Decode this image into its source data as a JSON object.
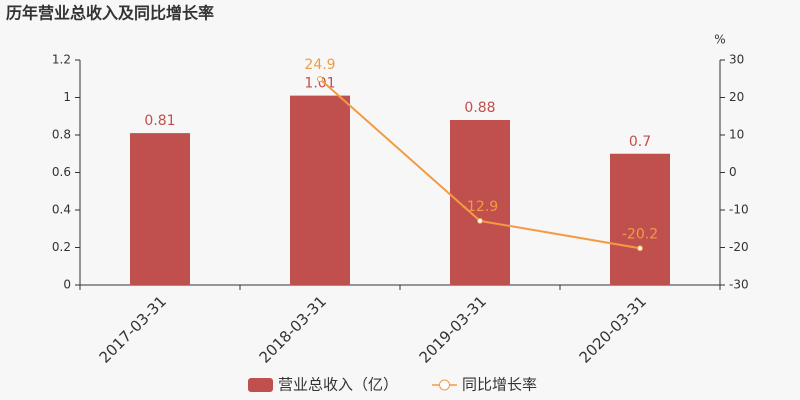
{
  "chart_data": {
    "type": "combo",
    "title": "历年营业总收入及同比增长率",
    "categories": [
      "2017-03-31",
      "2018-03-31",
      "2019-03-31",
      "2020-03-31"
    ],
    "series": [
      {
        "name": "营业总收入（亿）",
        "type": "bar",
        "color": "#c0504d",
        "values": [
          0.81,
          1.01,
          0.88,
          0.7
        ]
      },
      {
        "name": "同比增长率",
        "type": "line",
        "axis": "y2",
        "color": "#f39a45",
        "values": [
          null,
          24.9,
          -12.9,
          -20.2
        ]
      }
    ],
    "ylim": [
      0,
      1.2
    ],
    "yticks": [
      0,
      0.2,
      0.4,
      0.6,
      0.8,
      1,
      1.2
    ],
    "y2lim": [
      -30,
      30
    ],
    "y2ticks": [
      -30,
      -20,
      -10,
      0,
      10,
      20,
      30
    ],
    "y2_label": "%",
    "grid": false,
    "legend": "bottom"
  }
}
